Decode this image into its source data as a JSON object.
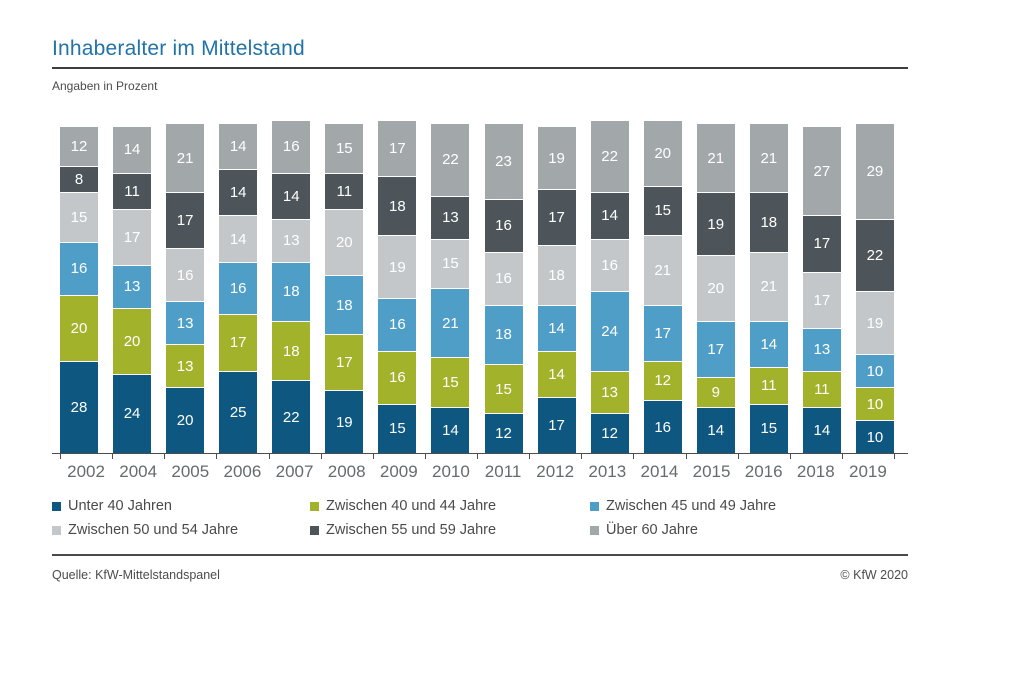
{
  "header": {
    "title": "Inhaberalter im Mittelstand",
    "subtitle": "Angaben in Prozent"
  },
  "footer": {
    "source": "Quelle: KfW-Mittelstandspanel",
    "copyright": "© KfW 2020"
  },
  "chart_data": {
    "type": "bar",
    "stacked": true,
    "unit": "percent",
    "title": "Inhaberalter im Mittelstand",
    "subtitle": "Angaben in Prozent",
    "value_labels": true,
    "y_axis_visible": false,
    "ylim": [
      0,
      101
    ],
    "legend_position": "bottom",
    "categories": [
      "2002",
      "2004",
      "2005",
      "2006",
      "2007",
      "2008",
      "2009",
      "2010",
      "2011",
      "2012",
      "2013",
      "2014",
      "2015",
      "2016",
      "2018",
      "2019"
    ],
    "series": [
      {
        "name": "Unter 40 Jahren",
        "color": "#0d5780",
        "values": [
          28,
          24,
          20,
          25,
          22,
          19,
          15,
          14,
          12,
          17,
          12,
          16,
          14,
          15,
          14,
          10
        ]
      },
      {
        "name": "Zwischen 40 und 44 Jahre",
        "color": "#a2b22b",
        "values": [
          20,
          20,
          13,
          17,
          18,
          17,
          16,
          15,
          15,
          14,
          13,
          12,
          9,
          11,
          11,
          10
        ]
      },
      {
        "name": "Zwischen 45 und 49 Jahre",
        "color": "#4f9ec8",
        "values": [
          16,
          13,
          13,
          16,
          18,
          18,
          16,
          21,
          18,
          14,
          24,
          17,
          17,
          14,
          13,
          10
        ]
      },
      {
        "name": "Zwischen 50 und 54 Jahre",
        "color": "#c3c7ca",
        "values": [
          15,
          17,
          16,
          14,
          13,
          20,
          19,
          15,
          16,
          18,
          16,
          21,
          20,
          21,
          17,
          19
        ]
      },
      {
        "name": "Zwischen 55 und 59 Jahre",
        "color": "#4d555b",
        "values": [
          8,
          11,
          17,
          14,
          14,
          11,
          18,
          13,
          16,
          17,
          14,
          15,
          19,
          18,
          17,
          22
        ]
      },
      {
        "name": "Über 60 Jahre",
        "color": "#a2a7aa",
        "values": [
          12,
          14,
          21,
          14,
          16,
          15,
          17,
          22,
          23,
          19,
          22,
          20,
          21,
          21,
          27,
          29
        ]
      }
    ]
  }
}
